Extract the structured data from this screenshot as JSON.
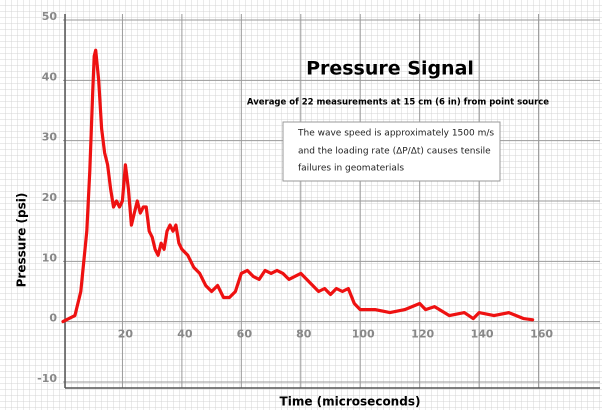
{
  "chart_data": {
    "type": "line",
    "title": "Pressure Signal",
    "subtitle": "Average of 22 measurements at 15 cm (6 in) from point source",
    "annotation": [
      "The wave speed is approximately 1500 m/s",
      "and the loading rate (ΔP/Δt) causes tensile",
      "failures in geomaterials"
    ],
    "x_label": "Time (microseconds)",
    "y_label": "Pressure (psi)",
    "x": [
      0,
      2,
      4,
      6,
      7,
      8,
      9,
      10,
      10.5,
      11,
      12,
      13,
      14,
      15,
      16,
      17,
      18,
      19,
      20,
      21,
      22,
      23,
      24,
      25,
      26,
      27,
      28,
      29,
      30,
      31,
      32,
      33,
      34,
      35,
      36,
      37,
      38,
      39,
      40,
      42,
      44,
      46,
      48,
      50,
      52,
      54,
      56,
      58,
      60,
      62,
      64,
      66,
      68,
      70,
      72,
      74,
      76,
      78,
      80,
      82,
      84,
      86,
      88,
      90,
      92,
      94,
      96,
      98,
      100,
      105,
      110,
      115,
      120,
      122,
      125,
      130,
      135,
      138,
      140,
      145,
      150,
      155,
      158
    ],
    "series": [
      {
        "name": "Pressure",
        "color": "#ee1111",
        "values": [
          0,
          0.5,
          1,
          5,
          10,
          15,
          25,
          38,
          44,
          45,
          40,
          32,
          28,
          26,
          22,
          19,
          20,
          19,
          20,
          26,
          22,
          16,
          18,
          20,
          18,
          19,
          19,
          15,
          14,
          12,
          11,
          13,
          12,
          15,
          16,
          15,
          16,
          13,
          12,
          11,
          9,
          8,
          6,
          5,
          6,
          4,
          4,
          5,
          8,
          8.5,
          7.5,
          7,
          8.5,
          8,
          8.5,
          8,
          7,
          7.5,
          8,
          7,
          6,
          5,
          5.5,
          4.5,
          5.5,
          5,
          5.5,
          3,
          2,
          2,
          1.5,
          2,
          3,
          2,
          2.5,
          1,
          1.5,
          0.5,
          1.5,
          1,
          1.5,
          0.5,
          0.3
        ]
      }
    ],
    "xlim": [
      0,
      180
    ],
    "ylim": [
      -11,
      51
    ],
    "xticks": [
      20,
      40,
      60,
      80,
      100,
      120,
      140,
      160
    ],
    "yticks": [
      -10,
      0,
      10,
      20,
      30,
      40,
      50
    ],
    "grid": true
  }
}
